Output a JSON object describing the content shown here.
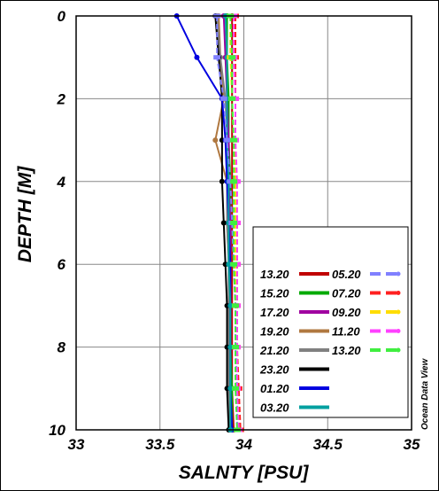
{
  "chart_data": {
    "type": "line",
    "title": "",
    "xlabel": "SALNTY [PSU]",
    "ylabel": "DEPTH [M]",
    "xlim": [
      33,
      35
    ],
    "ylim": [
      10,
      0
    ],
    "y_inverted": true,
    "x_ticks": [
      "33",
      "33.5",
      "34",
      "34.5",
      "35"
    ],
    "y_ticks": [
      "0",
      "2",
      "4",
      "6",
      "8",
      "10"
    ],
    "grid": true,
    "legend_position": "lower-right",
    "watermark": "Ocean Data View",
    "series": [
      {
        "name": "13.20",
        "color": "#c00000",
        "style": "solid",
        "points": [
          [
            33.93,
            0
          ],
          [
            33.93,
            1
          ],
          [
            33.93,
            2
          ],
          [
            33.93,
            3
          ],
          [
            33.93,
            4
          ],
          [
            33.93,
            5
          ],
          [
            33.93,
            6
          ],
          [
            33.93,
            7
          ],
          [
            33.93,
            8
          ],
          [
            33.93,
            9
          ],
          [
            33.94,
            10
          ]
        ]
      },
      {
        "name": "15.20",
        "color": "#00aa00",
        "style": "solid",
        "points": [
          [
            33.9,
            0
          ],
          [
            33.9,
            1
          ],
          [
            33.91,
            2
          ],
          [
            33.91,
            3
          ],
          [
            33.92,
            4
          ],
          [
            33.92,
            5
          ],
          [
            33.92,
            6
          ],
          [
            33.92,
            7
          ],
          [
            33.92,
            8
          ],
          [
            33.93,
            9
          ],
          [
            33.93,
            10
          ]
        ]
      },
      {
        "name": "17.20",
        "color": "#a000a0",
        "style": "solid",
        "points": [
          [
            33.88,
            0
          ],
          [
            33.89,
            1
          ],
          [
            33.9,
            2
          ],
          [
            33.91,
            3
          ],
          [
            33.91,
            4
          ],
          [
            33.92,
            5
          ],
          [
            33.92,
            6
          ],
          [
            33.92,
            7
          ],
          [
            33.92,
            8
          ],
          [
            33.92,
            9
          ],
          [
            33.93,
            10
          ]
        ]
      },
      {
        "name": "19.20",
        "color": "#b07840",
        "style": "solid",
        "points": [
          [
            33.85,
            0
          ],
          [
            33.86,
            1
          ],
          [
            33.88,
            2
          ],
          [
            33.83,
            3
          ],
          [
            33.9,
            4
          ],
          [
            33.9,
            5
          ],
          [
            33.91,
            6
          ],
          [
            33.91,
            7
          ],
          [
            33.91,
            8
          ],
          [
            33.91,
            9
          ],
          [
            33.92,
            10
          ]
        ]
      },
      {
        "name": "21.20",
        "color": "#808080",
        "style": "solid",
        "points": [
          [
            33.84,
            0
          ],
          [
            33.86,
            1
          ],
          [
            33.89,
            2
          ],
          [
            33.9,
            3
          ],
          [
            33.9,
            4
          ],
          [
            33.9,
            5
          ],
          [
            33.91,
            6
          ],
          [
            33.91,
            7
          ],
          [
            33.91,
            8
          ],
          [
            33.91,
            9
          ],
          [
            33.91,
            10
          ]
        ]
      },
      {
        "name": "23.20",
        "color": "#000000",
        "style": "solid",
        "points": [
          [
            33.83,
            0
          ],
          [
            33.85,
            1
          ],
          [
            33.87,
            2
          ],
          [
            33.87,
            3
          ],
          [
            33.87,
            4
          ],
          [
            33.88,
            5
          ],
          [
            33.89,
            6
          ],
          [
            33.9,
            7
          ],
          [
            33.9,
            8
          ],
          [
            33.9,
            9
          ],
          [
            33.91,
            10
          ]
        ]
      },
      {
        "name": "01.20",
        "color": "#0000e0",
        "style": "solid",
        "points": [
          [
            33.6,
            0
          ],
          [
            33.72,
            1
          ],
          [
            33.87,
            2
          ],
          [
            33.89,
            3
          ],
          [
            33.9,
            4
          ],
          [
            33.91,
            5
          ],
          [
            33.92,
            6
          ],
          [
            33.92,
            7
          ],
          [
            33.92,
            8
          ],
          [
            33.92,
            9
          ],
          [
            33.93,
            10
          ]
        ]
      },
      {
        "name": "03.20",
        "color": "#00a0a0",
        "style": "solid",
        "points": [
          [
            33.89,
            0
          ],
          [
            33.9,
            1
          ],
          [
            33.9,
            2
          ],
          [
            33.9,
            3
          ],
          [
            33.91,
            4
          ],
          [
            33.91,
            5
          ],
          [
            33.91,
            6
          ],
          [
            33.92,
            7
          ],
          [
            33.92,
            8
          ],
          [
            33.92,
            9
          ],
          [
            33.92,
            10
          ]
        ]
      },
      {
        "name": "05.20",
        "color": "#8080ff",
        "style": "dashed",
        "points": [
          [
            33.84,
            0
          ],
          [
            33.84,
            1
          ],
          [
            33.88,
            2
          ],
          [
            33.9,
            3
          ],
          [
            33.92,
            4
          ],
          [
            33.93,
            5
          ],
          [
            33.94,
            6
          ],
          [
            33.95,
            7
          ],
          [
            33.95,
            8
          ],
          [
            33.96,
            9
          ],
          [
            33.96,
            10
          ]
        ]
      },
      {
        "name": "07.20",
        "color": "#ff2020",
        "style": "dashed",
        "points": [
          [
            33.95,
            0
          ],
          [
            33.95,
            1
          ],
          [
            33.95,
            2
          ],
          [
            33.95,
            3
          ],
          [
            33.95,
            4
          ],
          [
            33.96,
            5
          ],
          [
            33.96,
            6
          ],
          [
            33.96,
            7
          ],
          [
            33.96,
            8
          ],
          [
            33.97,
            9
          ],
          [
            33.98,
            10
          ]
        ]
      },
      {
        "name": "09.20",
        "color": "#ffdd00",
        "style": "dashed",
        "points": [
          [
            33.92,
            0
          ],
          [
            33.92,
            1
          ],
          [
            33.93,
            2
          ],
          [
            33.94,
            3
          ],
          [
            33.95,
            4
          ],
          [
            33.95,
            5
          ],
          [
            33.95,
            6
          ],
          [
            33.95,
            7
          ],
          [
            33.96,
            8
          ],
          [
            33.96,
            9
          ],
          [
            33.97,
            10
          ]
        ]
      },
      {
        "name": "11.20",
        "color": "#ff40ff",
        "style": "dashed",
        "points": [
          [
            33.94,
            0
          ],
          [
            33.94,
            1
          ],
          [
            33.95,
            2
          ],
          [
            33.95,
            3
          ],
          [
            33.96,
            4
          ],
          [
            33.96,
            5
          ],
          [
            33.96,
            6
          ],
          [
            33.96,
            7
          ],
          [
            33.96,
            8
          ],
          [
            33.96,
            9
          ],
          [
            33.97,
            10
          ]
        ]
      },
      {
        "name": "13.20",
        "color": "#40ee40",
        "style": "dashed",
        "points": [
          [
            33.92,
            0
          ],
          [
            33.93,
            1
          ],
          [
            33.93,
            2
          ],
          [
            33.94,
            3
          ],
          [
            33.94,
            4
          ],
          [
            33.94,
            5
          ],
          [
            33.94,
            6
          ],
          [
            33.95,
            7
          ],
          [
            33.95,
            8
          ],
          [
            33.95,
            9
          ],
          [
            33.96,
            10
          ]
        ]
      }
    ]
  }
}
